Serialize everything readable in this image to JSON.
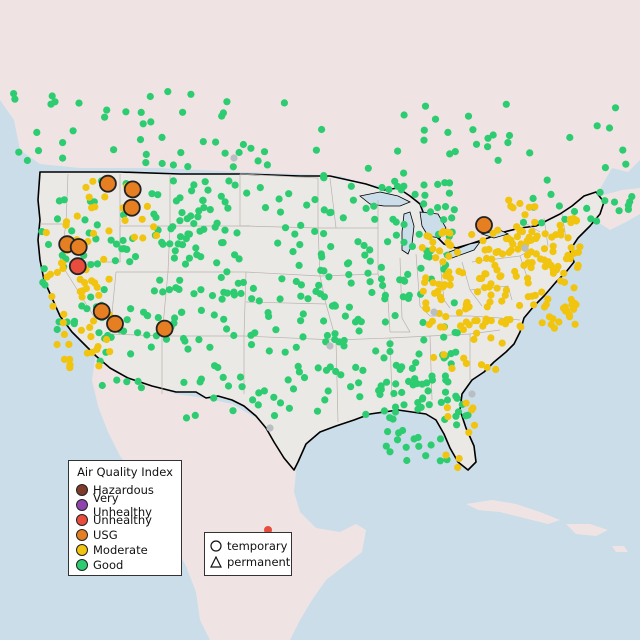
{
  "map": {
    "region": "Contiguous United States with portions of Canada, Mexico and the Caribbean",
    "colors": {
      "ocean": "#cbdde9",
      "land_us": "#ebe9e6",
      "land_foreign": "#efe4e3",
      "border": "#000000",
      "state_lines": "#b8b2ad"
    }
  },
  "aqi_legend": {
    "title": "Air Quality Index",
    "items": [
      {
        "label": "Hazardous",
        "color": "#7e3b2a"
      },
      {
        "label": "Very Unhealthy",
        "color": "#8e44ad"
      },
      {
        "label": "Unhealthy",
        "color": "#e74c3c"
      },
      {
        "label": "USG",
        "color": "#e67e22"
      },
      {
        "label": "Moderate",
        "color": "#f1c40f"
      },
      {
        "label": "Good",
        "color": "#2ecc71"
      }
    ]
  },
  "type_legend": {
    "items": [
      {
        "label": "temporary",
        "symbol": "circle"
      },
      {
        "label": "permanent",
        "symbol": "triangle"
      }
    ]
  },
  "monitors_highlighted": [
    {
      "lon": -116.6,
      "lat": 48.2,
      "category": "USG"
    },
    {
      "lon": -113.8,
      "lat": 47.6,
      "category": "USG"
    },
    {
      "lon": -113.9,
      "lat": 45.7,
      "category": "USG"
    },
    {
      "lon": -121.2,
      "lat": 41.9,
      "category": "USG"
    },
    {
      "lon": -119.9,
      "lat": 41.6,
      "category": "USG"
    },
    {
      "lon": -120.0,
      "lat": 39.6,
      "category": "Unhealthy"
    },
    {
      "lon": -117.3,
      "lat": 34.9,
      "category": "USG"
    },
    {
      "lon": -115.8,
      "lat": 33.6,
      "category": "USG"
    },
    {
      "lon": -110.2,
      "lat": 33.1,
      "category": "USG"
    },
    {
      "lon": -74.1,
      "lat": 43.9,
      "category": "USG"
    }
  ]
}
